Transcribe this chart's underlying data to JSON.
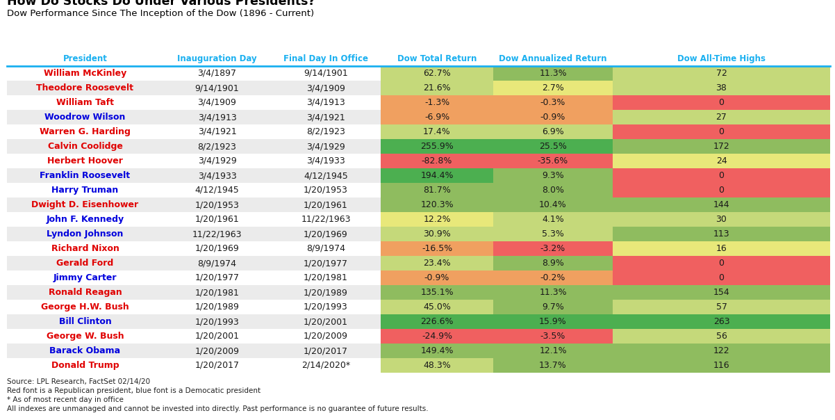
{
  "title": "How Do Stocks Do Under Various Presidents?",
  "subtitle": "Dow Performance Since The Inception of the Dow (1896 - Current)",
  "headers": [
    "President",
    "Inauguration Day",
    "Final Day In Office",
    "Dow Total Return",
    "Dow Annualized Return",
    "Dow All-Time Highs"
  ],
  "presidents": [
    {
      "name": "William McKinley",
      "party": "R",
      "inaug": "3/4/1897",
      "final": "9/14/1901",
      "total": "62.7%",
      "annual": "11.3%",
      "highs": "72",
      "total_val": 62.7,
      "annual_val": 11.3,
      "highs_val": 72
    },
    {
      "name": "Theodore Roosevelt",
      "party": "R",
      "inaug": "9/14/1901",
      "final": "3/4/1909",
      "total": "21.6%",
      "annual": "2.7%",
      "highs": "38",
      "total_val": 21.6,
      "annual_val": 2.7,
      "highs_val": 38
    },
    {
      "name": "William Taft",
      "party": "R",
      "inaug": "3/4/1909",
      "final": "3/4/1913",
      "total": "-1.3%",
      "annual": "-0.3%",
      "highs": "0",
      "total_val": -1.3,
      "annual_val": -0.3,
      "highs_val": 0
    },
    {
      "name": "Woodrow Wilson",
      "party": "D",
      "inaug": "3/4/1913",
      "final": "3/4/1921",
      "total": "-6.9%",
      "annual": "-0.9%",
      "highs": "27",
      "total_val": -6.9,
      "annual_val": -0.9,
      "highs_val": 27
    },
    {
      "name": "Warren G. Harding",
      "party": "R",
      "inaug": "3/4/1921",
      "final": "8/2/1923",
      "total": "17.4%",
      "annual": "6.9%",
      "highs": "0",
      "total_val": 17.4,
      "annual_val": 6.9,
      "highs_val": 0
    },
    {
      "name": "Calvin Coolidge",
      "party": "R",
      "inaug": "8/2/1923",
      "final": "3/4/1929",
      "total": "255.9%",
      "annual": "25.5%",
      "highs": "172",
      "total_val": 255.9,
      "annual_val": 25.5,
      "highs_val": 172
    },
    {
      "name": "Herbert Hoover",
      "party": "R",
      "inaug": "3/4/1929",
      "final": "3/4/1933",
      "total": "-82.8%",
      "annual": "-35.6%",
      "highs": "24",
      "total_val": -82.8,
      "annual_val": -35.6,
      "highs_val": 24
    },
    {
      "name": "Franklin Roosevelt",
      "party": "D",
      "inaug": "3/4/1933",
      "final": "4/12/1945",
      "total": "194.4%",
      "annual": "9.3%",
      "highs": "0",
      "total_val": 194.4,
      "annual_val": 9.3,
      "highs_val": 0
    },
    {
      "name": "Harry Truman",
      "party": "D",
      "inaug": "4/12/1945",
      "final": "1/20/1953",
      "total": "81.7%",
      "annual": "8.0%",
      "highs": "0",
      "total_val": 81.7,
      "annual_val": 8.0,
      "highs_val": 0
    },
    {
      "name": "Dwight D. Eisenhower",
      "party": "R",
      "inaug": "1/20/1953",
      "final": "1/20/1961",
      "total": "120.3%",
      "annual": "10.4%",
      "highs": "144",
      "total_val": 120.3,
      "annual_val": 10.4,
      "highs_val": 144
    },
    {
      "name": "John F. Kennedy",
      "party": "D",
      "inaug": "1/20/1961",
      "final": "11/22/1963",
      "total": "12.2%",
      "annual": "4.1%",
      "highs": "30",
      "total_val": 12.2,
      "annual_val": 4.1,
      "highs_val": 30
    },
    {
      "name": "Lyndon Johnson",
      "party": "D",
      "inaug": "11/22/1963",
      "final": "1/20/1969",
      "total": "30.9%",
      "annual": "5.3%",
      "highs": "113",
      "total_val": 30.9,
      "annual_val": 5.3,
      "highs_val": 113
    },
    {
      "name": "Richard Nixon",
      "party": "R",
      "inaug": "1/20/1969",
      "final": "8/9/1974",
      "total": "-16.5%",
      "annual": "-3.2%",
      "highs": "16",
      "total_val": -16.5,
      "annual_val": -3.2,
      "highs_val": 16
    },
    {
      "name": "Gerald Ford",
      "party": "R",
      "inaug": "8/9/1974",
      "final": "1/20/1977",
      "total": "23.4%",
      "annual": "8.9%",
      "highs": "0",
      "total_val": 23.4,
      "annual_val": 8.9,
      "highs_val": 0
    },
    {
      "name": "Jimmy Carter",
      "party": "D",
      "inaug": "1/20/1977",
      "final": "1/20/1981",
      "total": "-0.9%",
      "annual": "-0.2%",
      "highs": "0",
      "total_val": -0.9,
      "annual_val": -0.2,
      "highs_val": 0
    },
    {
      "name": "Ronald Reagan",
      "party": "R",
      "inaug": "1/20/1981",
      "final": "1/20/1989",
      "total": "135.1%",
      "annual": "11.3%",
      "highs": "154",
      "total_val": 135.1,
      "annual_val": 11.3,
      "highs_val": 154
    },
    {
      "name": "George H.W. Bush",
      "party": "R",
      "inaug": "1/20/1989",
      "final": "1/20/1993",
      "total": "45.0%",
      "annual": "9.7%",
      "highs": "57",
      "total_val": 45.0,
      "annual_val": 9.7,
      "highs_val": 57
    },
    {
      "name": "Bill Clinton",
      "party": "D",
      "inaug": "1/20/1993",
      "final": "1/20/2001",
      "total": "226.6%",
      "annual": "15.9%",
      "highs": "263",
      "total_val": 226.6,
      "annual_val": 15.9,
      "highs_val": 263
    },
    {
      "name": "George W. Bush",
      "party": "R",
      "inaug": "1/20/2001",
      "final": "1/20/2009",
      "total": "-24.9%",
      "annual": "-3.5%",
      "highs": "56",
      "total_val": -24.9,
      "annual_val": -3.5,
      "highs_val": 56
    },
    {
      "name": "Barack Obama",
      "party": "D",
      "inaug": "1/20/2009",
      "final": "1/20/2017",
      "total": "149.4%",
      "annual": "12.1%",
      "highs": "122",
      "total_val": 149.4,
      "annual_val": 12.1,
      "highs_val": 122
    },
    {
      "name": "Donald Trump",
      "party": "R",
      "inaug": "1/20/2017",
      "final": "2/14/2020*",
      "total": "48.3%",
      "annual": "13.7%",
      "highs": "116",
      "total_val": 48.3,
      "annual_val": 13.7,
      "highs_val": 116
    }
  ],
  "footnotes": [
    "Source: LPL Research, FactSet 02/14/20",
    "Red font is a Republican president, blue font is a Democatic president",
    "* As of most recent day in office",
    "All indexes are unmanaged and cannot be invested into directly. Past performance is no guarantee of future results."
  ],
  "republican_color": "#e00000",
  "democrat_color": "#0000dd",
  "header_color": "#1ab0f0",
  "header_line_color": "#1ab0f0",
  "bg_color": "#ffffff",
  "row_alt_colors": [
    "#ffffff",
    "#ebebeb"
  ],
  "col_colors": {
    "total": {
      "strong_green": "#4caf50",
      "med_green": "#8fbc5f",
      "light_green": "#c5d97a",
      "yellow": "#e8e87a",
      "orange": "#f0a060",
      "red": "#f06060"
    },
    "annual": {
      "strong_green": "#4caf50",
      "med_green": "#8fbc5f",
      "light_green": "#c5d97a",
      "yellow": "#e8e87a",
      "orange": "#f0a060",
      "red": "#f06060"
    },
    "highs": {
      "strong_green": "#4caf50",
      "med_green": "#8fbc5f",
      "light_green": "#c5d97a",
      "yellow": "#e8e87a",
      "orange": "#f0a060",
      "red": "#f06060"
    }
  }
}
